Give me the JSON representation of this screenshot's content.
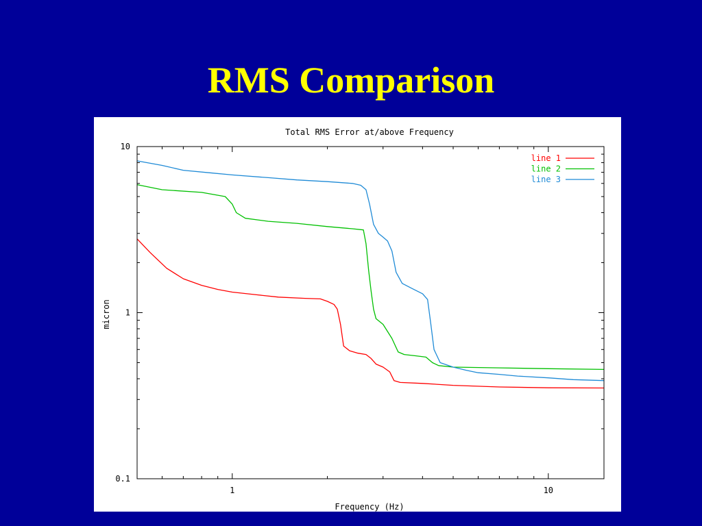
{
  "slide": {
    "title": "RMS Comparison"
  },
  "chart_data": {
    "type": "line",
    "title": "Total RMS Error at/above Frequency",
    "xlabel": "Frequency (Hz)",
    "ylabel": "micron",
    "xscale": "log",
    "yscale": "log",
    "xlim": [
      0.5,
      15
    ],
    "ylim": [
      0.1,
      10
    ],
    "xticks": [
      {
        "value": 1,
        "label": "1"
      },
      {
        "value": 10,
        "label": "10"
      }
    ],
    "yticks": [
      {
        "value": 0.1,
        "label": "0.1"
      },
      {
        "value": 1,
        "label": "1"
      },
      {
        "value": 10,
        "label": "10"
      }
    ],
    "grid": false,
    "legend": "top-right",
    "series": [
      {
        "name": "line 1",
        "color": "#ff0000",
        "points": [
          [
            0.5,
            2.78
          ],
          [
            0.55,
            2.3
          ],
          [
            0.62,
            1.85
          ],
          [
            0.7,
            1.6
          ],
          [
            0.8,
            1.46
          ],
          [
            0.9,
            1.38
          ],
          [
            1.0,
            1.33
          ],
          [
            1.2,
            1.28
          ],
          [
            1.4,
            1.24
          ],
          [
            1.7,
            1.22
          ],
          [
            1.9,
            1.21
          ],
          [
            2.0,
            1.17
          ],
          [
            2.1,
            1.12
          ],
          [
            2.15,
            1.05
          ],
          [
            2.2,
            0.85
          ],
          [
            2.25,
            0.63
          ],
          [
            2.35,
            0.59
          ],
          [
            2.5,
            0.57
          ],
          [
            2.65,
            0.56
          ],
          [
            2.75,
            0.53
          ],
          [
            2.85,
            0.49
          ],
          [
            3.0,
            0.47
          ],
          [
            3.15,
            0.44
          ],
          [
            3.25,
            0.39
          ],
          [
            3.4,
            0.38
          ],
          [
            4.0,
            0.375
          ],
          [
            5.0,
            0.365
          ],
          [
            7.0,
            0.357
          ],
          [
            10.0,
            0.353
          ],
          [
            15.0,
            0.352
          ]
        ]
      },
      {
        "name": "line 2",
        "color": "#00c000",
        "points": [
          [
            0.5,
            5.9
          ],
          [
            0.6,
            5.5
          ],
          [
            0.8,
            5.3
          ],
          [
            0.95,
            5.0
          ],
          [
            1.0,
            4.5
          ],
          [
            1.03,
            4.0
          ],
          [
            1.1,
            3.7
          ],
          [
            1.3,
            3.55
          ],
          [
            1.6,
            3.45
          ],
          [
            2.0,
            3.3
          ],
          [
            2.4,
            3.2
          ],
          [
            2.6,
            3.15
          ],
          [
            2.65,
            2.6
          ],
          [
            2.7,
            1.8
          ],
          [
            2.75,
            1.35
          ],
          [
            2.8,
            1.05
          ],
          [
            2.85,
            0.92
          ],
          [
            3.0,
            0.85
          ],
          [
            3.2,
            0.7
          ],
          [
            3.35,
            0.58
          ],
          [
            3.5,
            0.56
          ],
          [
            3.8,
            0.55
          ],
          [
            4.1,
            0.54
          ],
          [
            4.3,
            0.5
          ],
          [
            4.5,
            0.48
          ],
          [
            5.0,
            0.47
          ],
          [
            7.0,
            0.465
          ],
          [
            10.0,
            0.46
          ],
          [
            15.0,
            0.455
          ]
        ]
      },
      {
        "name": "line 3",
        "color": "#1e8ad6",
        "points": [
          [
            0.5,
            8.2
          ],
          [
            0.6,
            7.7
          ],
          [
            0.7,
            7.2
          ],
          [
            0.85,
            6.95
          ],
          [
            1.0,
            6.75
          ],
          [
            1.3,
            6.5
          ],
          [
            1.6,
            6.3
          ],
          [
            2.0,
            6.15
          ],
          [
            2.4,
            6.0
          ],
          [
            2.55,
            5.85
          ],
          [
            2.65,
            5.5
          ],
          [
            2.72,
            4.5
          ],
          [
            2.8,
            3.4
          ],
          [
            2.9,
            3.0
          ],
          [
            3.0,
            2.85
          ],
          [
            3.1,
            2.7
          ],
          [
            3.2,
            2.35
          ],
          [
            3.3,
            1.75
          ],
          [
            3.45,
            1.5
          ],
          [
            3.7,
            1.4
          ],
          [
            4.0,
            1.3
          ],
          [
            4.15,
            1.2
          ],
          [
            4.25,
            0.85
          ],
          [
            4.35,
            0.6
          ],
          [
            4.55,
            0.5
          ],
          [
            5.0,
            0.47
          ],
          [
            5.5,
            0.45
          ],
          [
            6.0,
            0.435
          ],
          [
            7.0,
            0.425
          ],
          [
            8.0,
            0.415
          ],
          [
            10.0,
            0.405
          ],
          [
            12.0,
            0.395
          ],
          [
            15.0,
            0.39
          ]
        ]
      }
    ]
  }
}
